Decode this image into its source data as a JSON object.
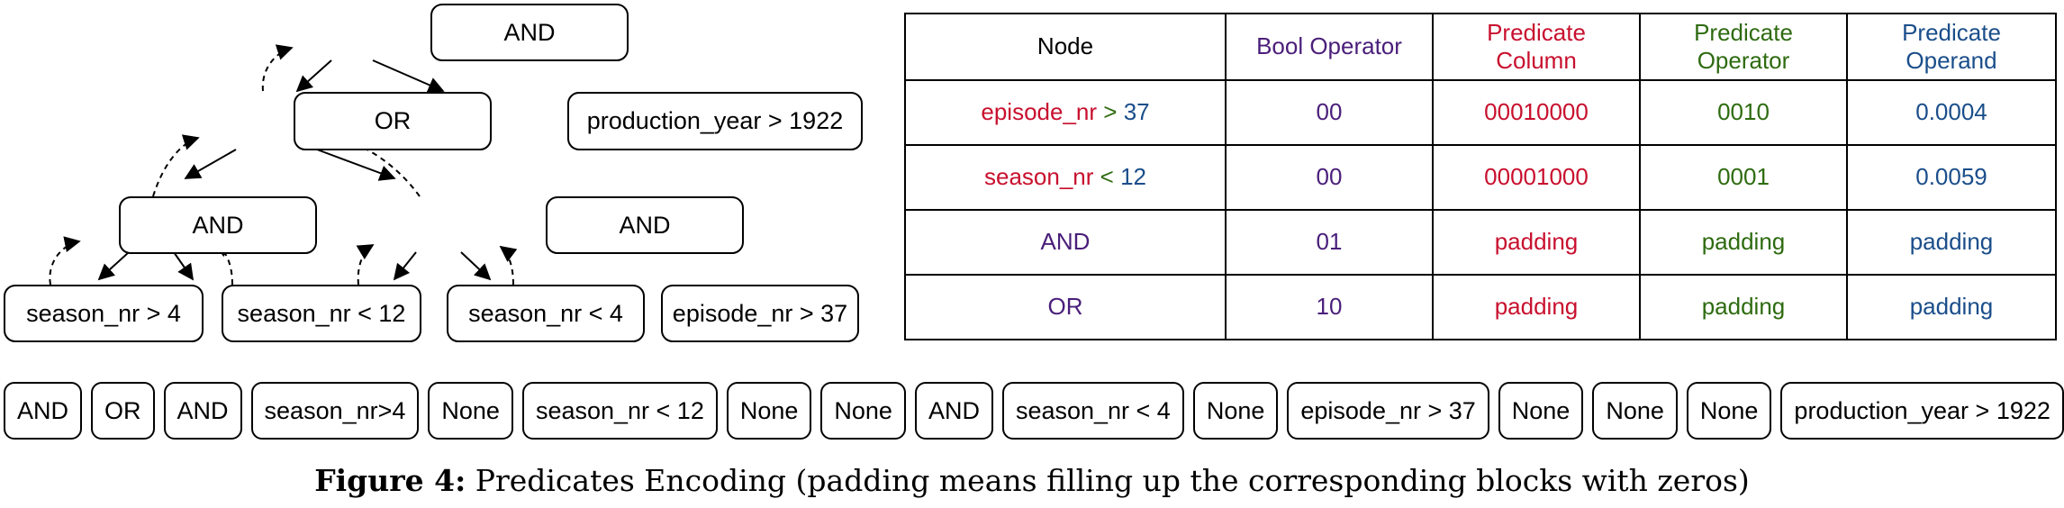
{
  "tree": {
    "nodes": {
      "and_root": "AND",
      "or": "OR",
      "production_year": "production_year > 1922",
      "and_left": "AND",
      "and_right": "AND",
      "season_gt4": "season_nr > 4",
      "season_lt12": "season_nr < 12",
      "season_lt4": "season_nr < 4",
      "episode_gt37": "episode_nr > 37"
    }
  },
  "table": {
    "headers": {
      "node": "Node",
      "bool_operator": "Bool Operator",
      "predicate_column_1": "Predicate",
      "predicate_column_2": "Column",
      "predicate_operator_1": "Predicate",
      "predicate_operator_2": "Operator",
      "predicate_operand_1": "Predicate",
      "predicate_operand_2": "Operand"
    },
    "rows": [
      {
        "node_col": "episode_nr",
        "node_op": ">",
        "node_val": "37",
        "bool": "00",
        "column": "00010000",
        "operator": "0010",
        "operand": "0.0004"
      },
      {
        "node_col": "season_nr",
        "node_op": "<",
        "node_val": "12",
        "bool": "00",
        "column": "00001000",
        "operator": "0001",
        "operand": "0.0059"
      },
      {
        "node": "AND",
        "bool": "01",
        "column": "padding",
        "operator": "padding",
        "operand": "padding"
      },
      {
        "node": "OR",
        "bool": "10",
        "column": "padding",
        "operator": "padding",
        "operand": "padding"
      }
    ]
  },
  "sequence": [
    "AND",
    "OR",
    "AND",
    "season_nr>4",
    "None",
    "season_nr < 12",
    "None",
    "None",
    "AND",
    "season_nr < 4",
    "None",
    "episode_nr > 37",
    "None",
    "None",
    "None",
    "production_year > 1922"
  ],
  "caption": {
    "label": "Figure 4:",
    "text": "Predicates Encoding (padding means filling up the corresponding blocks with zeros)"
  },
  "colors": {
    "bool_operator": "#4a1e7a",
    "predicate_column": "#c8102e",
    "predicate_operator": "#2e6b10",
    "predicate_operand": "#1a4e8a"
  }
}
